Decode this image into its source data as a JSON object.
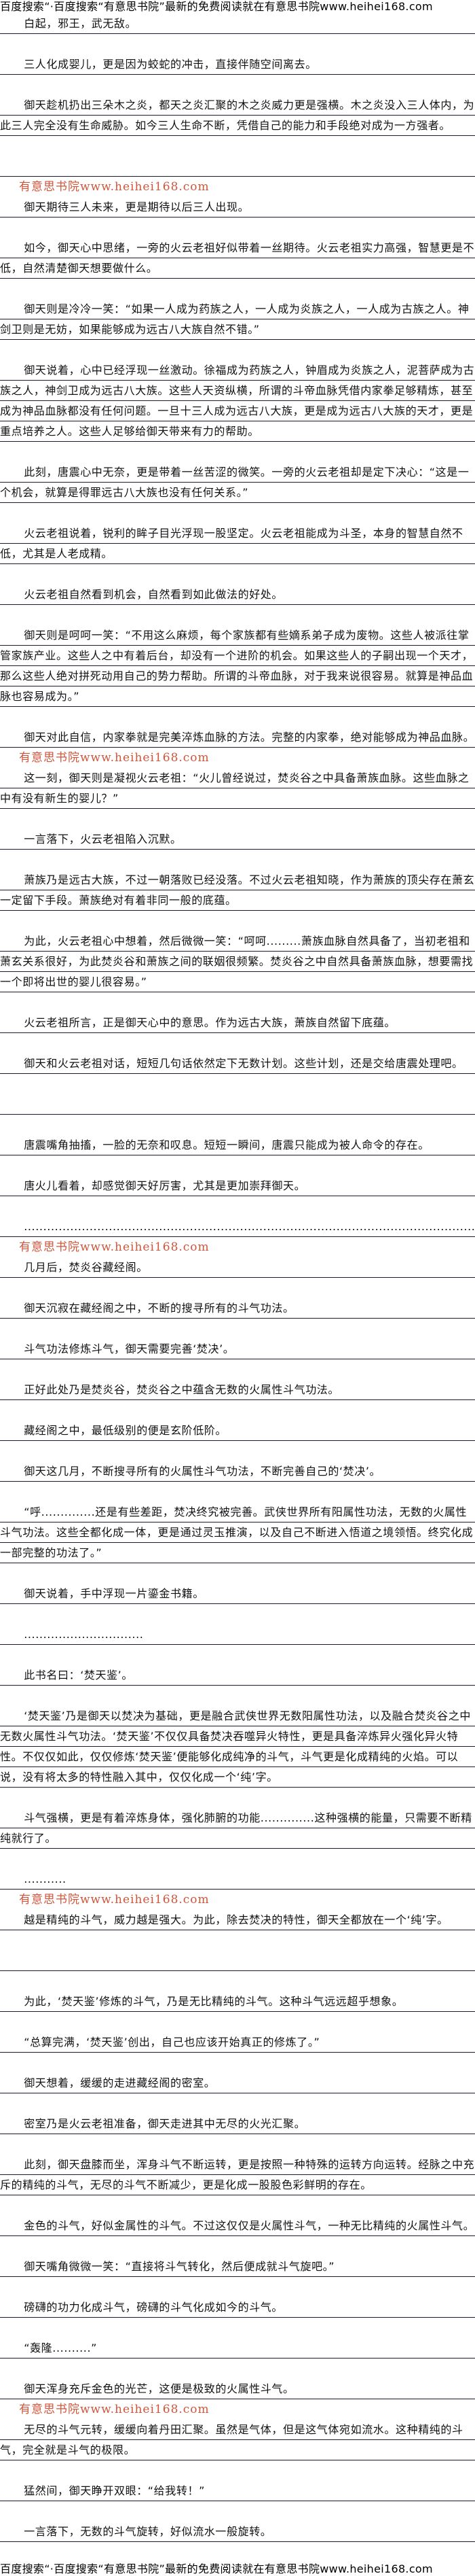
{
  "banner": "百度搜索“·百度搜索“有意思书院”最新的免费阅读就在有意思书院www.heihei168.com",
  "watermark": "有意思书院www.heihei168.com",
  "paragraphs": [
    "白起，邪王，武无敌。",
    "三人化成婴儿，更是因为蛟蛇的冲击，直接伴随空间离去。",
    "御天趁机扔出三朵木之炎，都天之炎汇聚的木之炎威力更是强横。木之炎没入三人体内，为此三人完全没有生命威胁。如今三人生命不断，凭借自己的能力和手段绝对成为一方强者。",
    "",
    "御天期待三人未来，更是期待以后三人出现。",
    "如今，御天心中思绪，一旁的火云老祖好似带着一丝期待。火云老祖实力高强，智慧更是不低，自然清楚御天想要做什么。",
    "御天则是冷冷一笑：“如果一人成为药族之人，一人成为炎族之人，一人成为古族之人。神剑卫则是无妨，如果能够成为远古八大族自然不错。”",
    "御天说着，心中已经浮现一丝激动。徐福成为药族之人，钟眉成为炎族之人，泥菩萨成为古族之人，神剑卫成为远古八大族。这些人天资纵横，所谓的斗帝血脉凭借内家拳足够精炼，甚至成为神品血脉都没有任何问题。一旦十三人成为远古八大族，更是成为远古八大族的天才，更是重点培养之人。这些人足够给御天带来有力的帮助。",
    "此刻，唐震心中无奈，更是带着一丝苦涩的微笑。一旁的火云老祖却是定下决心：“这是一个机会，就算是得罪远古八大族也没有任何关系。”",
    "火云老祖说着，锐利的眸子目光浮现一股坚定。火云老祖能成为斗圣，本身的智慧自然不低，尤其是人老成精。",
    "火云老祖自然看到机会，自然看到如此做法的好处。",
    "御天则是呵呵一笑：“不用这么麻烦，每个家族都有些嫡系弟子成为废物。这些人被派往掌管家族产业。这些人之中有着后台，却没有一个进阶的机会。如果这些人的子嗣出现一个天才，那么这些人绝对拼死动用自己的势力帮助。所谓的斗帝血脉，对于我来说很容易。就算是神品血脉也容易成为。”",
    "御天对此自信，内家拳就是完美淬炼血脉的方法。完整的内家拳，绝对能够成为神品血脉。",
    "这一刻，御天则是凝视火云老祖：“火儿曾经说过，焚炎谷之中具备萧族血脉。这些血脉之中有没有新生的婴儿？”",
    "一言落下，火云老祖陷入沉默。",
    "萧族乃是远古大族，不过一朝落败已经没落。不过火云老祖知晓，作为萧族的顶尖存在萧玄一定留下手段。萧族绝对有着非同一般的底蕴。",
    "为此，火云老祖心中想着，然后微微一笑：“呵呵.........萧族血脉自然具备了，当初老祖和萧玄关系很好，为此焚炎谷和萧族之间的联姻很频繁。焚炎谷之中自然具备萧族血脉，想要需找一个即将出世的婴儿很容易。”",
    "火云老祖所言，正是御天心中的意思。作为远古大族，萧族自然留下底蕴。",
    "御天和火云老祖对话，短短几句话依然定下无数计划。这些计划，还是交给唐震处理吧。",
    "",
    "唐震嘴角抽搐，一脸的无奈和叹息。短短一瞬间，唐震只能成为被人命令的存在。",
    "唐火儿看着，却感觉御天好厉害，尤其是更加崇拜御天。",
    "......................................................................................................................",
    "几月后，焚炎谷藏经阁。",
    "御天沉寂在藏经阁之中，不断的搜寻所有的斗气功法。",
    "斗气功法修炼斗气，御天需要完善‘焚决’。",
    "正好此处乃是焚炎谷，焚炎谷之中蕴含无数的火属性斗气功法。",
    "藏经阁之中，最低级别的便是玄阶低阶。",
    "御天这几月，不断搜寻所有的火属性斗气功法，不断完善自己的‘焚决’。",
    "“呼..............还是有些差距，焚决终究被完善。武侠世界所有阳属性功法，无数的火属性斗气功法。这些全都化成一体，更是通过灵玉推演，以及自己不断进入悟道之境领悟。终究化成一部完整的功法了。”",
    "御天说着，手中浮现一片鎏金书籍。",
    "...............................",
    "此书名曰：‘焚天鉴’。",
    "‘焚天鉴’乃是御天以焚决为基础，更是融合武侠世界无数阳属性功法，以及融合焚炎谷之中无数火属性斗气功法。‘焚天鉴’不仅仅具备焚决吞噬异火特性，更是具备淬炼异火强化异火特性。不仅仅如此，仅仅修炼‘焚天鉴’便能够化成纯净的斗气，斗气更是化成精纯的火焰。可以说，没有将太多的特性融入其中，仅仅化成一个‘纯’字。",
    "斗气强横，更是有着淬炼身体，强化肺腑的功能..............这种强横的能量，只需要不断精纯就行了。",
    "...........",
    "越是精纯的斗气，威力越是强大。为此，除去焚决的特性，御天全都放在一个‘纯’字。",
    "",
    "为此，‘焚天鉴’修炼的斗气，乃是无比精纯的斗气。这种斗气远远超乎想象。",
    "“总算完满，‘焚天鉴’创出，自己也应该开始真正的修炼了。”",
    "御天想着，缓缓的走进藏经阁的密室。",
    "密室乃是火云老祖准备，御天走进其中无尽的火光汇聚。",
    "此刻，御天盘膝而坐，浑身斗气不断运转，更是按照一种特殊的运转方向运转。经脉之中充斥的精纯的斗气，无尽的斗气不断减少，更是化成一股股色彩鲜明的存在。",
    "金色的斗气，好似金属性的斗气。不过这仅仅是火属性斗气，一种无比精纯的火属性斗气。",
    "御天嘴角微微一笑：“直接将斗气转化，然后便成就斗气旋吧。”",
    "磅礴的功力化成斗气，磅礴的斗气化成如今的斗气。",
    "“轰隆..........”",
    "御天浑身充斥金色的光芒，这便是极致的火属性斗气。",
    "无尽的斗气元转，缓缓向着丹田汇聚。虽然是气体，但是这气体宛如流水。这种精纯的斗气，完全就是斗气的极限。",
    "猛然间，御天睁开双眼：“给我转！”",
    "一言落下，无数的斗气旋转，好似流水一般旋转。"
  ]
}
